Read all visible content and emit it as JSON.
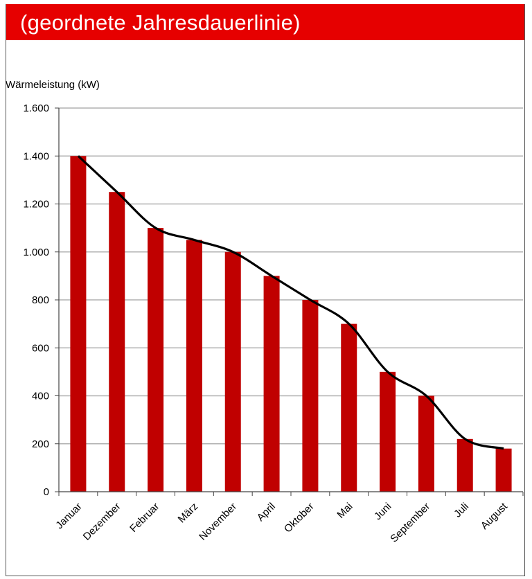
{
  "page": {
    "title": "(geordnete Jahresdauerlinie)"
  },
  "colors": {
    "title_bg": "#e60000",
    "bar": "#c00000",
    "curve": "#000000",
    "grid": "#b0b0b0"
  },
  "chart_data": {
    "type": "bar",
    "title": "(geordnete Jahresdauerlinie)",
    "xlabel": "",
    "ylabel": "Wärmeleistung (kW)",
    "ylim": [
      0,
      1600
    ],
    "yticks": [
      0,
      200,
      400,
      600,
      800,
      1000,
      1200,
      1400,
      1600
    ],
    "ytick_labels": [
      "0",
      "200",
      "400",
      "600",
      "800",
      "1.000",
      "1.200",
      "1.400",
      "1.600"
    ],
    "grid": true,
    "legend": "none",
    "overlay": "smooth-line",
    "categories": [
      "Januar",
      "Dezember",
      "Februar",
      "März",
      "November",
      "April",
      "Oktober",
      "Mai",
      "Juni",
      "September",
      "Juli",
      "August"
    ],
    "values": [
      1400,
      1250,
      1100,
      1050,
      1000,
      900,
      800,
      700,
      500,
      400,
      220,
      180
    ]
  }
}
